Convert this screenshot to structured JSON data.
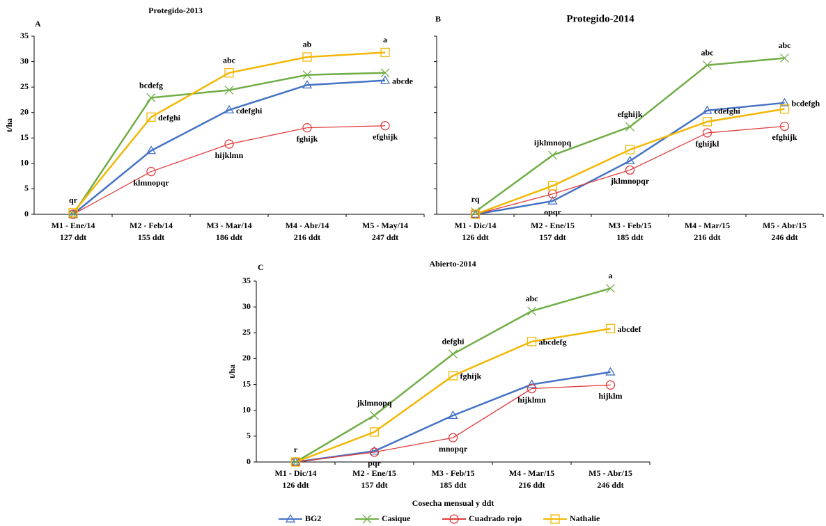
{
  "chart_data": [
    {
      "type": "line",
      "panel": "A",
      "title": "Protegido-2013",
      "ylabel": "t/ha",
      "categories": [
        "M1 - Ene/14",
        "M2 - Feb/14",
        "M3 - Mar/14",
        "M4 - Abr/14",
        "M5 - May/14"
      ],
      "x_sublabels": [
        "127 ddt",
        "155 ddt",
        "186 ddt",
        "216 ddt",
        "247 ddt"
      ],
      "ylim": [
        0,
        35
      ],
      "yticks": [
        0,
        5,
        10,
        15,
        20,
        25,
        30,
        35
      ],
      "show_ytick_labels": true,
      "series": [
        {
          "name": "BG2",
          "color": "#4472c4",
          "marker": "triangle",
          "values": [
            0,
            12.5,
            20.5,
            25.4,
            26.3
          ],
          "labels": [
            null,
            null,
            "cdefghi",
            null,
            "abcde"
          ]
        },
        {
          "name": "Casique",
          "color": "#70ad47",
          "marker": "x",
          "values": [
            0,
            22.9,
            24.4,
            27.4,
            27.8
          ],
          "labels": [
            null,
            "bcdefg",
            null,
            null,
            null
          ]
        },
        {
          "name": "Cuadrado rojo",
          "color": "#e03c3c",
          "marker": "circle",
          "values": [
            0,
            8.4,
            13.8,
            17.0,
            17.4
          ],
          "labels": [
            null,
            "klmnopqr",
            "hijklmn",
            "fghijk",
            "efghijk"
          ]
        },
        {
          "name": "Nathalie",
          "color": "#f2b705",
          "marker": "square",
          "values": [
            0.3,
            19.1,
            27.8,
            30.9,
            31.8
          ],
          "labels": [
            "qr",
            "defghi",
            "abc",
            "ab",
            "a"
          ]
        }
      ]
    },
    {
      "type": "line",
      "panel": "B",
      "title": "Protegido-2014",
      "categories": [
        "M1 - Dic/14",
        "M2 - Ene/15",
        "M3 - Feb/15",
        "M4 - Mar/15",
        "M5 - Abr/15"
      ],
      "x_sublabels": [
        "126 ddt",
        "157 ddt",
        "185 ddt",
        "216 ddt",
        "246 ddt"
      ],
      "ylim": [
        0,
        35
      ],
      "yticks": [
        0,
        5,
        10,
        15,
        20,
        25,
        30,
        35
      ],
      "show_ytick_labels": false,
      "series": [
        {
          "name": "BG2",
          "color": "#4472c4",
          "marker": "triangle",
          "values": [
            0,
            2.6,
            10.5,
            20.4,
            21.9
          ],
          "labels": [
            null,
            "opqr",
            null,
            "cdefghi",
            "bcdefgh"
          ]
        },
        {
          "name": "Casique",
          "color": "#70ad47",
          "marker": "x",
          "values": [
            0.5,
            11.6,
            17.2,
            29.3,
            30.7
          ],
          "labels": [
            "rq",
            "ijklmnopq",
            "efghijk",
            "abc",
            "abc"
          ]
        },
        {
          "name": "Cuadrado rojo",
          "color": "#e03c3c",
          "marker": "circle",
          "values": [
            0,
            4.0,
            8.7,
            16.0,
            17.3
          ],
          "labels": [
            null,
            null,
            "jklmnopqr",
            "fghijkl",
            "efghijk"
          ]
        },
        {
          "name": "Nathalie",
          "color": "#f2b705",
          "marker": "square",
          "values": [
            0,
            5.6,
            12.7,
            18.2,
            20.7
          ],
          "labels": [
            null,
            null,
            null,
            null,
            null
          ]
        }
      ]
    },
    {
      "type": "line",
      "panel": "C",
      "title": "Abierto-2014",
      "ylabel": "t/ha",
      "xlabel": "Cosecha mensual y ddt",
      "categories": [
        "M1 - Dic/14",
        "M2 - Ene/15",
        "M3 - Feb/15",
        "M4 - Mar/15",
        "M5 - Abr/15"
      ],
      "x_sublabels": [
        "126 ddt",
        "157 ddt",
        "185 ddt",
        "216 ddt",
        "246 ddt"
      ],
      "ylim": [
        0,
        35
      ],
      "yticks": [
        0,
        5,
        10,
        15,
        20,
        25,
        30,
        35
      ],
      "show_ytick_labels": true,
      "legend": "bottom",
      "series": [
        {
          "name": "BG2",
          "color": "#4472c4",
          "marker": "triangle",
          "values": [
            0,
            2.1,
            9.0,
            15.0,
            17.4
          ],
          "labels": [
            null,
            null,
            null,
            null,
            null
          ]
        },
        {
          "name": "Casique",
          "color": "#70ad47",
          "marker": "x",
          "values": [
            0,
            9.0,
            20.9,
            29.2,
            33.6
          ],
          "labels": [
            "r",
            "jklmnopq",
            "defghi",
            "abc",
            "a"
          ]
        },
        {
          "name": "Cuadrado rojo",
          "color": "#e03c3c",
          "marker": "circle",
          "values": [
            0,
            1.9,
            4.7,
            14.2,
            14.9
          ],
          "labels": [
            null,
            "pqr",
            "mnopqr",
            "hijklmn",
            "hijklm"
          ]
        },
        {
          "name": "Nathalie",
          "color": "#f2b705",
          "marker": "square",
          "values": [
            0,
            5.8,
            16.7,
            23.3,
            25.8
          ],
          "labels": [
            null,
            null,
            "fghijk",
            "abcdefg",
            "abcdef"
          ]
        }
      ]
    }
  ]
}
